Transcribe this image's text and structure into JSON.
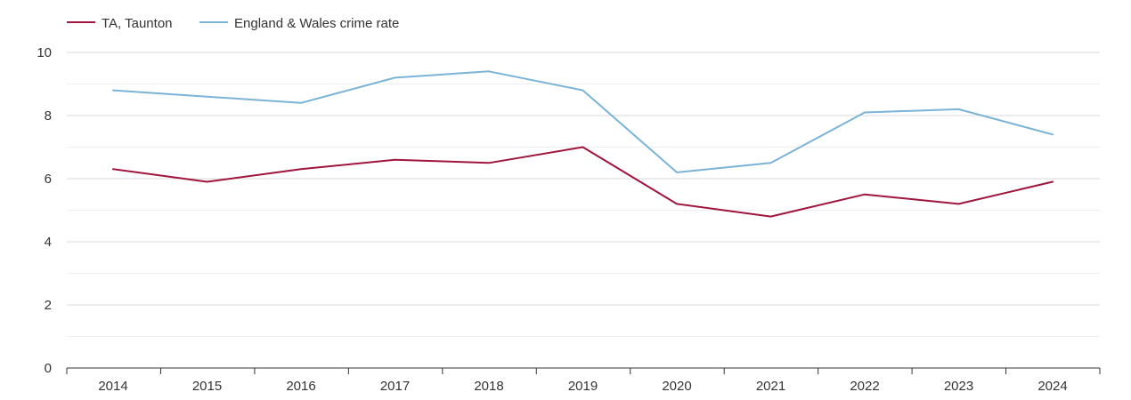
{
  "chart_data": {
    "type": "line",
    "title": "",
    "xlabel": "",
    "ylabel": "",
    "x": [
      "2014",
      "2015",
      "2016",
      "2017",
      "2018",
      "2019",
      "2020",
      "2021",
      "2022",
      "2023",
      "2024"
    ],
    "ylim": [
      0,
      10
    ],
    "yticks": [
      0,
      2,
      4,
      6,
      8,
      10
    ],
    "grid": true,
    "legend_position": "top-left",
    "series": [
      {
        "name": "TA, Taunton",
        "color": "#a0153e",
        "values": [
          6.3,
          5.9,
          6.3,
          6.6,
          6.5,
          7.0,
          5.2,
          4.8,
          5.5,
          5.2,
          5.9
        ]
      },
      {
        "name": "England & Wales crime rate",
        "color": "#7ab3d6",
        "values": [
          8.8,
          8.6,
          8.4,
          9.2,
          9.4,
          8.8,
          6.2,
          6.5,
          8.1,
          8.2,
          7.4
        ]
      }
    ]
  }
}
